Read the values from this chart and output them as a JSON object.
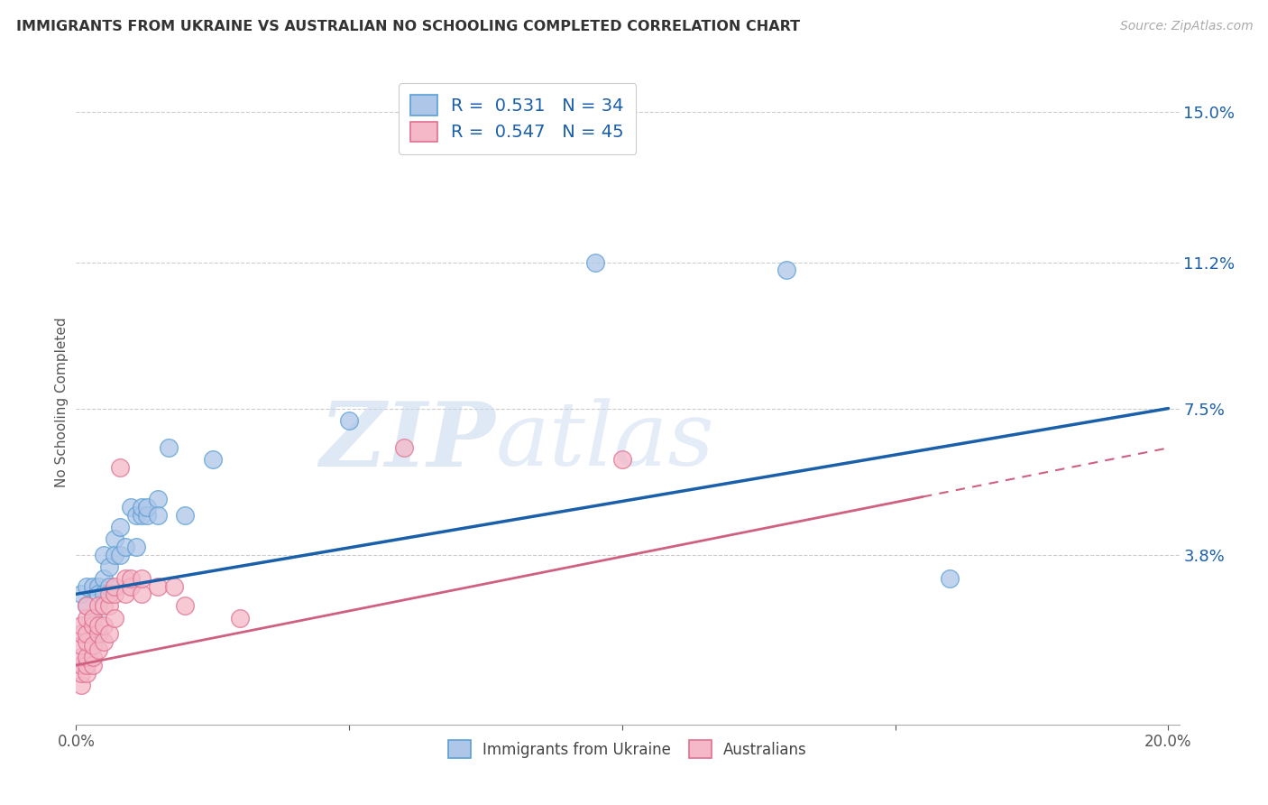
{
  "title": "IMMIGRANTS FROM UKRAINE VS AUSTRALIAN NO SCHOOLING COMPLETED CORRELATION CHART",
  "source": "Source: ZipAtlas.com",
  "ylabel": "No Schooling Completed",
  "xlim": [
    0.0,
    0.202
  ],
  "ylim": [
    -0.005,
    0.158
  ],
  "x_ticks": [
    0.0,
    0.05,
    0.1,
    0.15,
    0.2
  ],
  "x_tick_labels": [
    "0.0%",
    "",
    "",
    "",
    "20.0%"
  ],
  "y_tick_values": [
    0.15,
    0.112,
    0.075,
    0.038
  ],
  "y_tick_labels": [
    "15.0%",
    "11.2%",
    "7.5%",
    "3.8%"
  ],
  "legend_entries": [
    {
      "label": "Immigrants from Ukraine",
      "color": "#aec6e8",
      "border": "#5a9fd4",
      "R": "0.531",
      "N": "34"
    },
    {
      "label": "Australians",
      "color": "#f4b8c8",
      "border": "#e07090",
      "R": "0.547",
      "N": "45"
    }
  ],
  "ukraine_line": {
    "x0": 0.0,
    "y0": 0.028,
    "x1": 0.2,
    "y1": 0.075
  },
  "australian_line": {
    "x0": 0.0,
    "y0": 0.01,
    "x1": 0.2,
    "y1": 0.065
  },
  "ukraine_line_color": "#1a5faa",
  "australian_line_color": "#d06080",
  "ukraine_points": [
    [
      0.001,
      0.028
    ],
    [
      0.002,
      0.03
    ],
    [
      0.002,
      0.025
    ],
    [
      0.003,
      0.022
    ],
    [
      0.003,
      0.03
    ],
    [
      0.004,
      0.03
    ],
    [
      0.004,
      0.028
    ],
    [
      0.004,
      0.018
    ],
    [
      0.005,
      0.032
    ],
    [
      0.005,
      0.028
    ],
    [
      0.005,
      0.038
    ],
    [
      0.006,
      0.035
    ],
    [
      0.006,
      0.03
    ],
    [
      0.007,
      0.042
    ],
    [
      0.007,
      0.038
    ],
    [
      0.008,
      0.038
    ],
    [
      0.008,
      0.045
    ],
    [
      0.009,
      0.04
    ],
    [
      0.01,
      0.05
    ],
    [
      0.011,
      0.04
    ],
    [
      0.011,
      0.048
    ],
    [
      0.012,
      0.048
    ],
    [
      0.012,
      0.05
    ],
    [
      0.013,
      0.048
    ],
    [
      0.013,
      0.05
    ],
    [
      0.015,
      0.052
    ],
    [
      0.015,
      0.048
    ],
    [
      0.017,
      0.065
    ],
    [
      0.02,
      0.048
    ],
    [
      0.025,
      0.062
    ],
    [
      0.05,
      0.072
    ],
    [
      0.095,
      0.112
    ],
    [
      0.13,
      0.11
    ],
    [
      0.16,
      0.032
    ]
  ],
  "australian_points": [
    [
      0.001,
      0.005
    ],
    [
      0.001,
      0.008
    ],
    [
      0.001,
      0.01
    ],
    [
      0.001,
      0.012
    ],
    [
      0.001,
      0.015
    ],
    [
      0.001,
      0.018
    ],
    [
      0.001,
      0.02
    ],
    [
      0.002,
      0.008
    ],
    [
      0.002,
      0.01
    ],
    [
      0.002,
      0.012
    ],
    [
      0.002,
      0.016
    ],
    [
      0.002,
      0.018
    ],
    [
      0.002,
      0.022
    ],
    [
      0.002,
      0.025
    ],
    [
      0.003,
      0.01
    ],
    [
      0.003,
      0.012
    ],
    [
      0.003,
      0.015
    ],
    [
      0.003,
      0.02
    ],
    [
      0.003,
      0.022
    ],
    [
      0.004,
      0.014
    ],
    [
      0.004,
      0.018
    ],
    [
      0.004,
      0.02
    ],
    [
      0.004,
      0.025
    ],
    [
      0.005,
      0.016
    ],
    [
      0.005,
      0.02
    ],
    [
      0.005,
      0.025
    ],
    [
      0.006,
      0.018
    ],
    [
      0.006,
      0.025
    ],
    [
      0.006,
      0.028
    ],
    [
      0.007,
      0.022
    ],
    [
      0.007,
      0.028
    ],
    [
      0.007,
      0.03
    ],
    [
      0.008,
      0.06
    ],
    [
      0.009,
      0.028
    ],
    [
      0.009,
      0.032
    ],
    [
      0.01,
      0.03
    ],
    [
      0.01,
      0.032
    ],
    [
      0.012,
      0.028
    ],
    [
      0.012,
      0.032
    ],
    [
      0.015,
      0.03
    ],
    [
      0.018,
      0.03
    ],
    [
      0.02,
      0.025
    ],
    [
      0.03,
      0.022
    ],
    [
      0.06,
      0.065
    ],
    [
      0.1,
      0.062
    ]
  ],
  "watermark_zip": "ZIP",
  "watermark_atlas": "atlas",
  "background_color": "#ffffff",
  "grid_color": "#cccccc"
}
